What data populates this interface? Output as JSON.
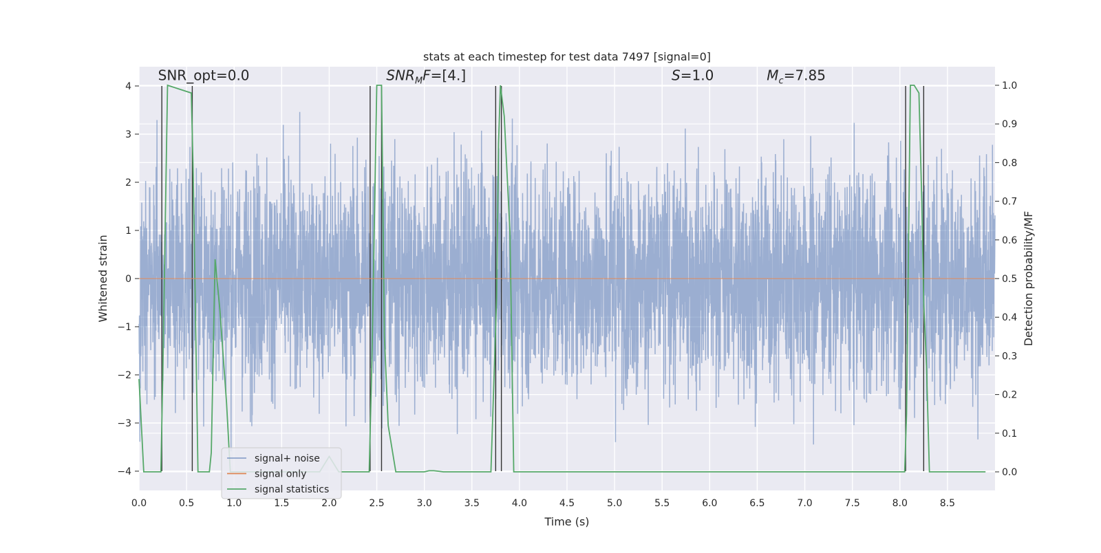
{
  "chart_data": {
    "type": "line",
    "title": "stats at each timestep for test data 7497 [signal=0]",
    "xlabel": "Time (s)",
    "ylabel": "Whitened strain",
    "ylabel_right": "Detection probability/MF",
    "xlim": [
      0,
      9.0
    ],
    "ylim": [
      -4.4,
      4.4
    ],
    "ylim_right": [
      -0.048,
      1.048
    ],
    "xticks": [
      "0.0",
      "0.5",
      "1.0",
      "1.5",
      "2.0",
      "2.5",
      "3.0",
      "3.5",
      "4.0",
      "4.5",
      "5.0",
      "5.5",
      "6.0",
      "6.5",
      "7.0",
      "7.5",
      "8.0",
      "8.5"
    ],
    "xtick_values": [
      0,
      0.5,
      1.0,
      1.5,
      2.0,
      2.5,
      3.0,
      3.5,
      4.0,
      4.5,
      5.0,
      5.5,
      6.0,
      6.5,
      7.0,
      7.5,
      8.0,
      8.5
    ],
    "yticks": [
      "−4",
      "−3",
      "−2",
      "−1",
      "0",
      "1",
      "2",
      "3",
      "4"
    ],
    "ytick_values": [
      -4,
      -3,
      -2,
      -1,
      0,
      1,
      2,
      3,
      4
    ],
    "yticks_right": [
      "0.0",
      "0.1",
      "0.2",
      "0.3",
      "0.4",
      "0.5",
      "0.6",
      "0.7",
      "0.8",
      "0.9",
      "1.0"
    ],
    "ytick_right_values": [
      0.0,
      0.1,
      0.2,
      0.3,
      0.4,
      0.5,
      0.6,
      0.7,
      0.8,
      0.9,
      1.0
    ],
    "annotations": {
      "snr_opt": "SNR_opt=0.0",
      "snr_mf": "SNR",
      "snr_mf_sub": "M",
      "snr_mf_rest": "F=[4.]",
      "s_label": "S",
      "s_value": "=1.0",
      "mc_label": "M",
      "mc_sub": "c",
      "mc_value": "=7.85"
    },
    "annotation_positions": {
      "snr_opt": [
        0.2,
        4.12
      ],
      "snr_mf": [
        2.6,
        4.12
      ],
      "s": [
        5.6,
        4.12
      ],
      "mc": [
        6.6,
        4.12
      ]
    },
    "legend": {
      "placement": "lower-left",
      "entries": [
        {
          "label": "signal+ noise",
          "color": "#4c72b0"
        },
        {
          "label": "signal only",
          "color": "#dd8452"
        },
        {
          "label": "signal statistics",
          "color": "#55a868"
        }
      ]
    },
    "series": [
      {
        "name": "signal+ noise",
        "color": "#4c72b0",
        "opacity": 0.5,
        "description": "whitened noise, approx Gaussian, peaks about ±3.7",
        "x_range": [
          0,
          9.0
        ],
        "approx_samples": 4000,
        "peak_abs": 3.7
      },
      {
        "name": "signal only",
        "color": "#dd8452",
        "x": [
          0,
          9.0
        ],
        "y": [
          0,
          0
        ]
      },
      {
        "name": "signal statistics",
        "color": "#55a868",
        "axis": "right",
        "x": [
          0.0,
          0.05,
          0.23,
          0.25,
          0.3,
          0.55,
          0.57,
          0.62,
          0.74,
          0.76,
          0.8,
          0.85,
          0.92,
          0.96,
          1.0,
          1.5,
          1.9,
          2.0,
          2.05,
          2.1,
          2.42,
          2.45,
          2.5,
          2.55,
          2.58,
          2.62,
          2.7,
          3.0,
          3.05,
          3.1,
          3.2,
          3.5,
          3.7,
          3.72,
          3.76,
          3.78,
          3.8,
          3.84,
          3.9,
          3.94,
          4.0,
          8.05,
          8.07,
          8.11,
          8.15,
          8.2,
          8.23,
          8.25,
          8.28,
          8.31,
          8.9
        ],
        "y": [
          0.24,
          0.0,
          0.0,
          0.25,
          1.0,
          0.98,
          0.77,
          0.0,
          0.0,
          0.05,
          0.55,
          0.42,
          0.18,
          0.0,
          0.0,
          0.0,
          0.0,
          0.04,
          0.02,
          0.0,
          0.0,
          0.3,
          1.0,
          1.0,
          0.35,
          0.12,
          0.0,
          0.0,
          0.003,
          0.003,
          0.0,
          0.0,
          0.0,
          0.15,
          0.45,
          0.85,
          1.0,
          0.92,
          0.62,
          0.0,
          0.0,
          0.0,
          0.15,
          1.0,
          1.0,
          0.98,
          0.7,
          0.44,
          0.27,
          0.0,
          0.0
        ]
      },
      {
        "name": "vertical markers",
        "color": "#333333",
        "x": [
          0.24,
          0.56,
          2.43,
          2.55,
          3.75,
          3.81,
          8.06,
          8.25
        ],
        "y_range": [
          -4,
          4
        ]
      }
    ]
  }
}
